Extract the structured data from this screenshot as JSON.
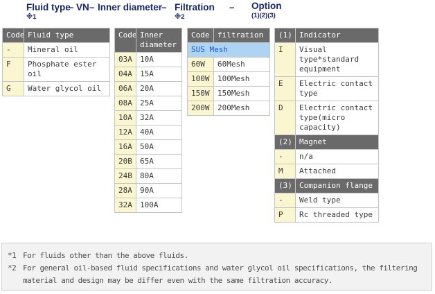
{
  "title": {
    "part_fluid": "Fluid type",
    "sep1": "–",
    "part_vn": "VN",
    "sep2": "–",
    "part_inner": "Inner diameter",
    "sep3": "–",
    "part_filtration": "Filtration",
    "sep4": "–",
    "part_option": "Option",
    "note_fluid": "※1",
    "note_filtration": "※2",
    "note_option": "(1)(2)(3)"
  },
  "tables": {
    "fluid_type": {
      "headers": [
        "Code",
        "Fluid type"
      ],
      "rows": [
        [
          "-",
          "Mineral oil"
        ],
        [
          "F",
          "Phosphate ester oil"
        ],
        [
          "G",
          "Water glycol oil"
        ]
      ]
    },
    "inner_diameter": {
      "headers": [
        "Code",
        "Inner diameter"
      ],
      "rows": [
        [
          "03A",
          "10A"
        ],
        [
          "04A",
          "15A"
        ],
        [
          "06A",
          "20A"
        ],
        [
          "08A",
          "25A"
        ],
        [
          "10A",
          "32A"
        ],
        [
          "12A",
          "40A"
        ],
        [
          "16A",
          "50A"
        ],
        [
          "20B",
          "65A"
        ],
        [
          "24B",
          "80A"
        ],
        [
          "28A",
          "90A"
        ],
        [
          "32A",
          "100A"
        ]
      ]
    },
    "filtration": {
      "headers": [
        "Code",
        "filtration"
      ],
      "subheader": "SUS Mesh",
      "rows": [
        [
          "60W",
          "60Mesh"
        ],
        [
          "100W",
          "100Mesh"
        ],
        [
          "150W",
          "150Mesh"
        ],
        [
          "200W",
          "200Mesh"
        ]
      ]
    },
    "option": {
      "sections": [
        {
          "header": [
            "(1)",
            "Indicator"
          ],
          "rows": [
            [
              "I",
              "Visual type*standard equipment"
            ],
            [
              "E",
              "Electric contact type"
            ],
            [
              "D",
              "Electric contact type(micro capacity)"
            ]
          ]
        },
        {
          "header": [
            "(2)",
            "Magnet"
          ],
          "rows": [
            [
              "-",
              "n/a"
            ],
            [
              "M",
              "Attached"
            ]
          ]
        },
        {
          "header": [
            "(3)",
            "Companion flange"
          ],
          "rows": [
            [
              "-",
              "Weld type"
            ],
            [
              "P",
              "Rc threaded type"
            ]
          ]
        }
      ]
    }
  },
  "footnotes": [
    {
      "marker": "*1",
      "text": "For fluids other than the above fluids."
    },
    {
      "marker": "*2",
      "text": "For general oil-based fluid specifications and water glycol oil specifications, the filtering material and design may be differ even with the same filtration accuracy."
    }
  ],
  "colors": {
    "title_navy": "#1A2766",
    "header_bg": "#6A6A6A",
    "header_text": "#FFFFFF",
    "code_cell_bg": "#FAF6D0",
    "subheader_bg": "#AFD3F3",
    "subheader_text": "#1C5AD2",
    "cell_border": "#C4C4C4",
    "footnote_bg": "#F2F2F2"
  }
}
